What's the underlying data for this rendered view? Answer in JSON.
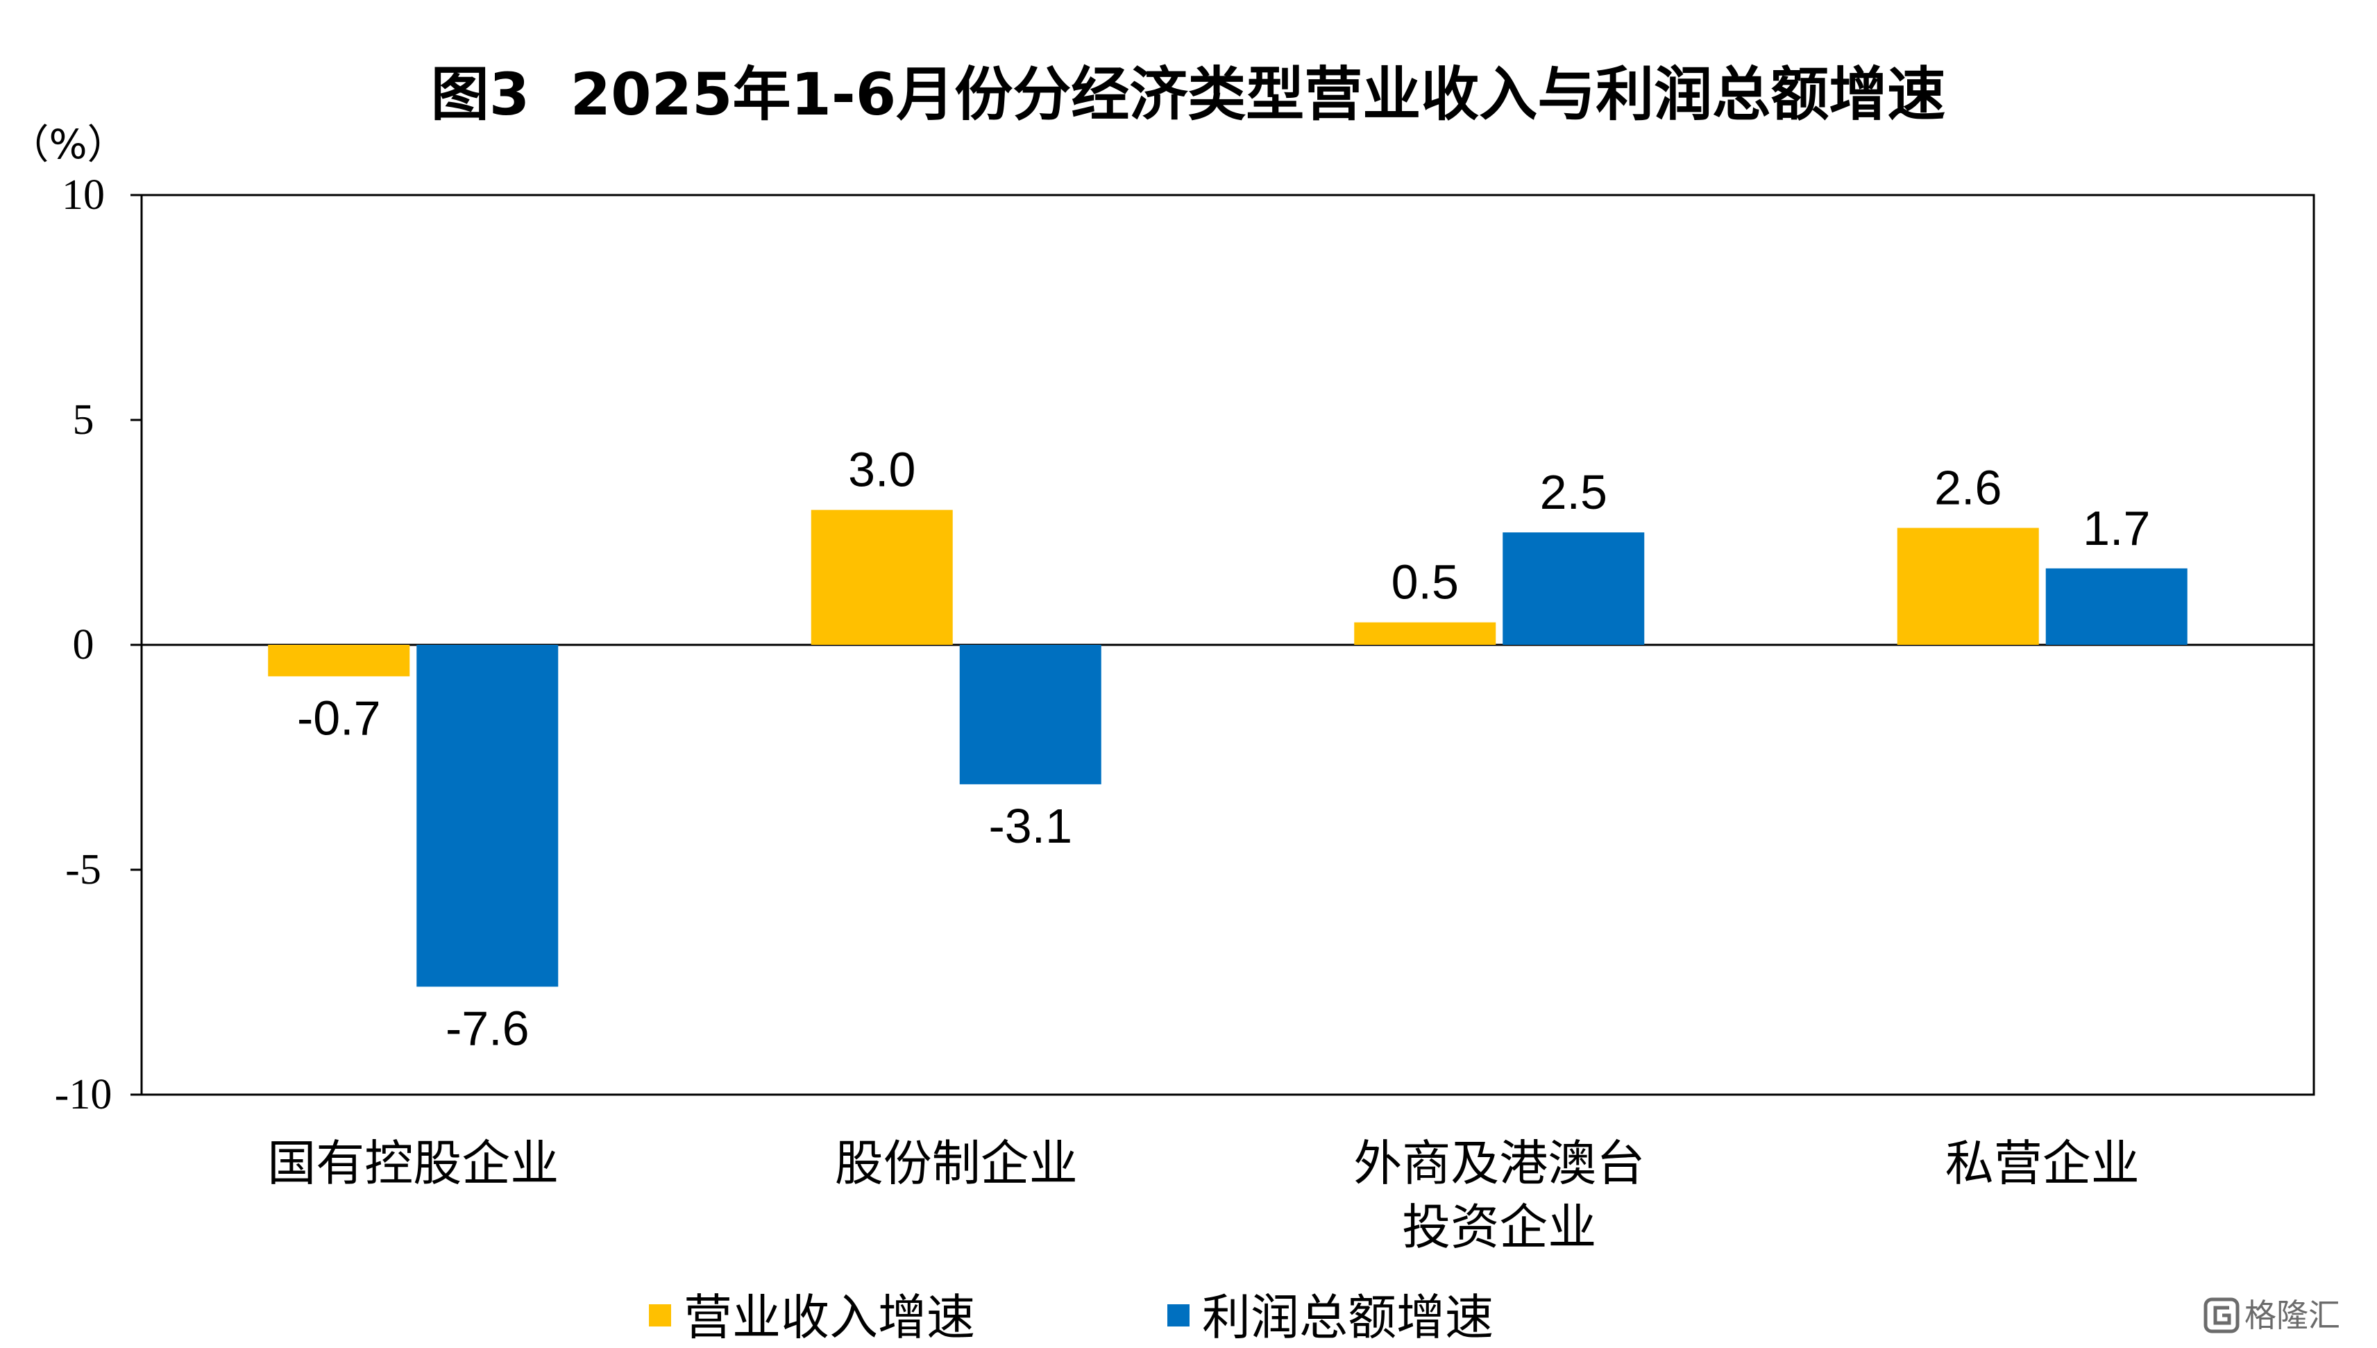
{
  "colors": {
    "revenue": "#FFC000",
    "profit": "#0070C0",
    "axis": "#000000",
    "frame": "#000000"
  },
  "chart_data": {
    "type": "bar",
    "title": "图3  2025年1-6月份分经济类型营业收入与利润总额增速",
    "unit": "（%）",
    "categories": [
      [
        "国有控股企业"
      ],
      [
        "股份制企业"
      ],
      [
        "外商及港澳台",
        "投资企业"
      ],
      [
        "私营企业"
      ]
    ],
    "series": [
      {
        "name": "营业收入增速",
        "color": "#FFC000",
        "values": [
          -0.7,
          3.0,
          0.5,
          2.6
        ],
        "labels": [
          "-0.7",
          "3.0",
          "0.5",
          "2.6"
        ]
      },
      {
        "name": "利润总额增速",
        "color": "#0070C0",
        "values": [
          -7.6,
          -3.1,
          2.5,
          1.7
        ],
        "labels": [
          "-7.6",
          "-3.1",
          "2.5",
          "1.7"
        ]
      }
    ],
    "ylim": [
      -10,
      10
    ],
    "yticks": [
      10,
      5,
      0,
      -5,
      -10
    ],
    "ytick_labels": [
      "10",
      "5",
      "0",
      "-5",
      "-10"
    ],
    "legend_position": "bottom",
    "grid": false
  },
  "watermark": {
    "text": "格隆汇",
    "icon": "gelonghui-logo-icon"
  }
}
